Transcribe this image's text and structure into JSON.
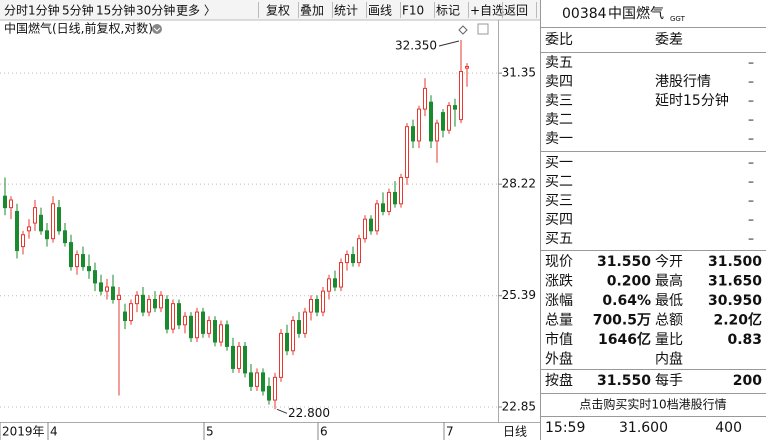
{
  "toolbar": {
    "periods": [
      "分时",
      "1分钟",
      "5分钟",
      "15分钟",
      "30分钟",
      "更多 〉"
    ],
    "tools": [
      "复权",
      "叠加",
      "统计",
      "画线",
      "F10",
      "标记",
      "+自选",
      "返回"
    ]
  },
  "chart_data": {
    "type": "candlestick",
    "title": "中国燃气(日线,前复权,对数)",
    "period_label": "日线",
    "log_scale": true,
    "grid": true,
    "up_color": "#e8382f",
    "down_color": "#1a8a2e",
    "ylim": [
      22.57,
      32.35
    ],
    "yticks": [
      {
        "value": 22.85,
        "label": "22.85"
      },
      {
        "value": 25.39,
        "label": "25.39"
      },
      {
        "value": 28.22,
        "label": "28.22"
      },
      {
        "value": 31.35,
        "label": "31.35"
      }
    ],
    "categories": [
      "2019年",
      null,
      null,
      null,
      null,
      null,
      null,
      null,
      "4",
      null,
      null,
      null,
      null,
      null,
      null,
      null,
      null,
      null,
      null,
      null,
      null,
      null,
      null,
      null,
      null,
      null,
      null,
      null,
      null,
      null,
      null,
      null,
      null,
      null,
      "5",
      null,
      null,
      null,
      null,
      null,
      null,
      null,
      null,
      null,
      null,
      null,
      null,
      null,
      null,
      null,
      null,
      null,
      null,
      "6",
      null,
      null,
      null,
      null,
      null,
      null,
      null,
      null,
      null,
      null,
      null,
      null,
      null,
      null,
      null,
      null,
      null,
      null,
      null,
      null,
      "7",
      null,
      null,
      null
    ],
    "ohlc": [
      [
        27.9,
        28.4,
        27.4,
        27.6
      ],
      [
        27.6,
        27.9,
        27.3,
        27.8
      ],
      [
        27.5,
        27.7,
        26.3,
        26.5
      ],
      [
        26.6,
        27.0,
        26.4,
        26.9
      ],
      [
        27.0,
        27.3,
        26.8,
        27.1
      ],
      [
        27.2,
        27.8,
        27.0,
        27.6
      ],
      [
        27.4,
        27.6,
        26.9,
        27.0
      ],
      [
        27.0,
        27.2,
        26.6,
        26.8
      ],
      [
        26.8,
        27.9,
        26.7,
        27.7
      ],
      [
        27.6,
        27.8,
        26.9,
        27.0
      ],
      [
        27.0,
        27.2,
        26.6,
        26.7
      ],
      [
        26.7,
        26.9,
        26.0,
        26.1
      ],
      [
        26.1,
        26.5,
        25.9,
        26.4
      ],
      [
        26.4,
        26.6,
        26.0,
        26.1
      ],
      [
        26.1,
        26.4,
        25.8,
        26.0
      ],
      [
        26.0,
        26.2,
        25.5,
        25.7
      ],
      [
        25.7,
        25.9,
        25.4,
        25.5
      ],
      [
        25.5,
        25.8,
        25.3,
        25.6
      ],
      [
        25.6,
        25.9,
        25.2,
        25.3
      ],
      [
        25.3,
        25.6,
        23.1,
        25.4
      ],
      [
        25.0,
        25.2,
        24.6,
        24.8
      ],
      [
        24.8,
        25.3,
        24.7,
        25.2
      ],
      [
        25.2,
        25.5,
        25.0,
        25.4
      ],
      [
        25.4,
        25.6,
        24.9,
        25.0
      ],
      [
        25.0,
        25.4,
        24.9,
        25.3
      ],
      [
        25.3,
        25.5,
        25.0,
        25.1
      ],
      [
        25.1,
        25.5,
        25.0,
        25.4
      ],
      [
        25.3,
        25.4,
        24.5,
        24.6
      ],
      [
        24.6,
        25.3,
        24.5,
        25.2
      ],
      [
        25.2,
        25.3,
        24.6,
        24.7
      ],
      [
        24.7,
        25.0,
        24.5,
        24.9
      ],
      [
        24.9,
        25.0,
        24.3,
        24.4
      ],
      [
        24.4,
        25.1,
        24.3,
        25.0
      ],
      [
        25.0,
        25.1,
        24.4,
        24.5
      ],
      [
        24.5,
        24.9,
        24.4,
        24.8
      ],
      [
        24.8,
        24.9,
        24.2,
        24.3
      ],
      [
        24.3,
        24.8,
        24.2,
        24.7
      ],
      [
        24.7,
        24.8,
        24.1,
        24.2
      ],
      [
        24.2,
        24.4,
        23.6,
        23.7
      ],
      [
        23.7,
        24.3,
        23.6,
        24.2
      ],
      [
        24.2,
        24.3,
        23.5,
        23.6
      ],
      [
        23.6,
        23.8,
        23.2,
        23.3
      ],
      [
        23.3,
        23.7,
        23.2,
        23.6
      ],
      [
        23.6,
        23.7,
        23.1,
        23.2
      ],
      [
        23.3,
        23.5,
        22.9,
        23.0
      ],
      [
        23.0,
        23.6,
        22.8,
        23.5
      ],
      [
        23.5,
        24.6,
        23.4,
        24.5
      ],
      [
        24.5,
        24.7,
        24.0,
        24.1
      ],
      [
        24.1,
        24.9,
        24.0,
        24.8
      ],
      [
        24.8,
        25.0,
        24.4,
        24.5
      ],
      [
        24.5,
        25.1,
        24.4,
        25.0
      ],
      [
        25.0,
        25.4,
        24.8,
        25.3
      ],
      [
        25.3,
        25.4,
        24.9,
        25.0
      ],
      [
        25.0,
        25.6,
        24.9,
        25.5
      ],
      [
        25.5,
        25.9,
        25.3,
        25.8
      ],
      [
        25.8,
        26.0,
        25.5,
        25.6
      ],
      [
        25.6,
        26.3,
        25.5,
        26.2
      ],
      [
        26.2,
        26.5,
        26.0,
        26.4
      ],
      [
        26.4,
        26.6,
        26.1,
        26.2
      ],
      [
        26.2,
        26.9,
        26.1,
        26.8
      ],
      [
        26.8,
        27.4,
        26.7,
        27.3
      ],
      [
        27.3,
        27.4,
        26.9,
        27.0
      ],
      [
        27.0,
        27.8,
        26.9,
        27.7
      ],
      [
        27.7,
        28.0,
        27.4,
        27.5
      ],
      [
        27.5,
        28.1,
        27.4,
        28.0
      ],
      [
        28.0,
        28.3,
        27.6,
        27.7
      ],
      [
        27.7,
        28.5,
        27.6,
        28.4
      ],
      [
        28.4,
        29.9,
        28.2,
        29.8
      ],
      [
        29.8,
        30.0,
        29.2,
        29.4
      ],
      [
        29.4,
        30.4,
        29.2,
        30.3
      ],
      [
        30.3,
        31.2,
        30.1,
        30.9
      ],
      [
        30.5,
        30.7,
        29.2,
        29.4
      ],
      [
        29.4,
        30.0,
        28.8,
        29.9
      ],
      [
        30.2,
        30.3,
        29.5,
        29.7
      ],
      [
        29.7,
        30.5,
        29.6,
        30.4
      ],
      [
        30.4,
        30.6,
        29.8,
        30.3
      ],
      [
        30.0,
        32.35,
        29.9,
        31.4
      ],
      [
        31.5,
        31.65,
        30.95,
        31.55
      ]
    ],
    "annotations": [
      {
        "index": 76,
        "value": 32.35,
        "label": "32.350"
      },
      {
        "index": 45,
        "value": 22.8,
        "label": "22.800"
      }
    ]
  },
  "quote": {
    "code": "00384",
    "name": "中国燃气",
    "badge": "GGT",
    "ratio_labels": [
      "委比",
      "委差"
    ],
    "asks": [
      {
        "label": "卖五",
        "value": "–"
      },
      {
        "label": "卖四",
        "value": "–"
      },
      {
        "label": "卖三",
        "value": "–"
      },
      {
        "label": "卖二",
        "value": "–"
      },
      {
        "label": "卖一",
        "value": "–"
      }
    ],
    "notice": [
      "港股行情",
      "延时15分钟"
    ],
    "bids": [
      {
        "label": "买一",
        "value": "–"
      },
      {
        "label": "买二",
        "value": "–"
      },
      {
        "label": "买三",
        "value": "–"
      },
      {
        "label": "买四",
        "value": "–"
      },
      {
        "label": "买五",
        "value": "–"
      }
    ],
    "stats": [
      [
        "现价",
        "31.550",
        "今开",
        "31.500"
      ],
      [
        "涨跌",
        "0.200",
        "最高",
        "31.650"
      ],
      [
        "涨幅",
        "0.64%",
        "最低",
        "30.950"
      ],
      [
        "总量",
        "700.5万",
        "总额",
        "2.20亿"
      ],
      [
        "市值",
        "1646亿",
        "量比",
        "0.83"
      ],
      [
        "外盘",
        "",
        "内盘",
        ""
      ]
    ],
    "board": [
      "按盘",
      "31.550",
      "每手",
      "200"
    ],
    "promo": "点击购买实时10档港股行情",
    "tick": [
      "15:59",
      "31.600",
      "400"
    ]
  }
}
